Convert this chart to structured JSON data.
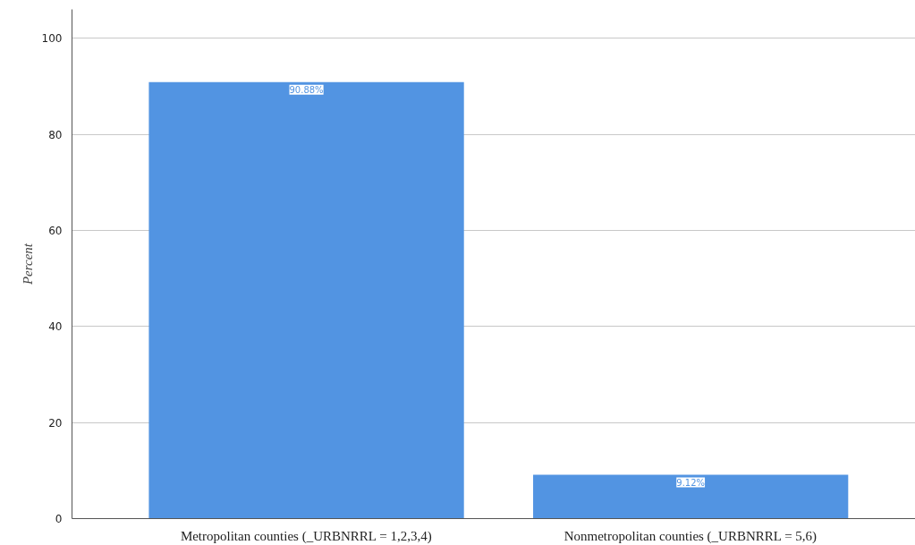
{
  "chart_data": {
    "type": "bar",
    "ylabel": "Percent",
    "categories": [
      "Metropolitan counties (_URBNRRL = 1,2,3,4)",
      "Nonmetropolitan counties (_URBNRRL = 5,6)"
    ],
    "values": [
      90.88,
      9.12
    ],
    "value_labels": [
      "90.88%",
      "9.12%"
    ],
    "color": "#5294e2",
    "ylim": [
      0,
      106
    ],
    "yticks": [
      0,
      20,
      40,
      60,
      80,
      100
    ],
    "grid": "y"
  }
}
